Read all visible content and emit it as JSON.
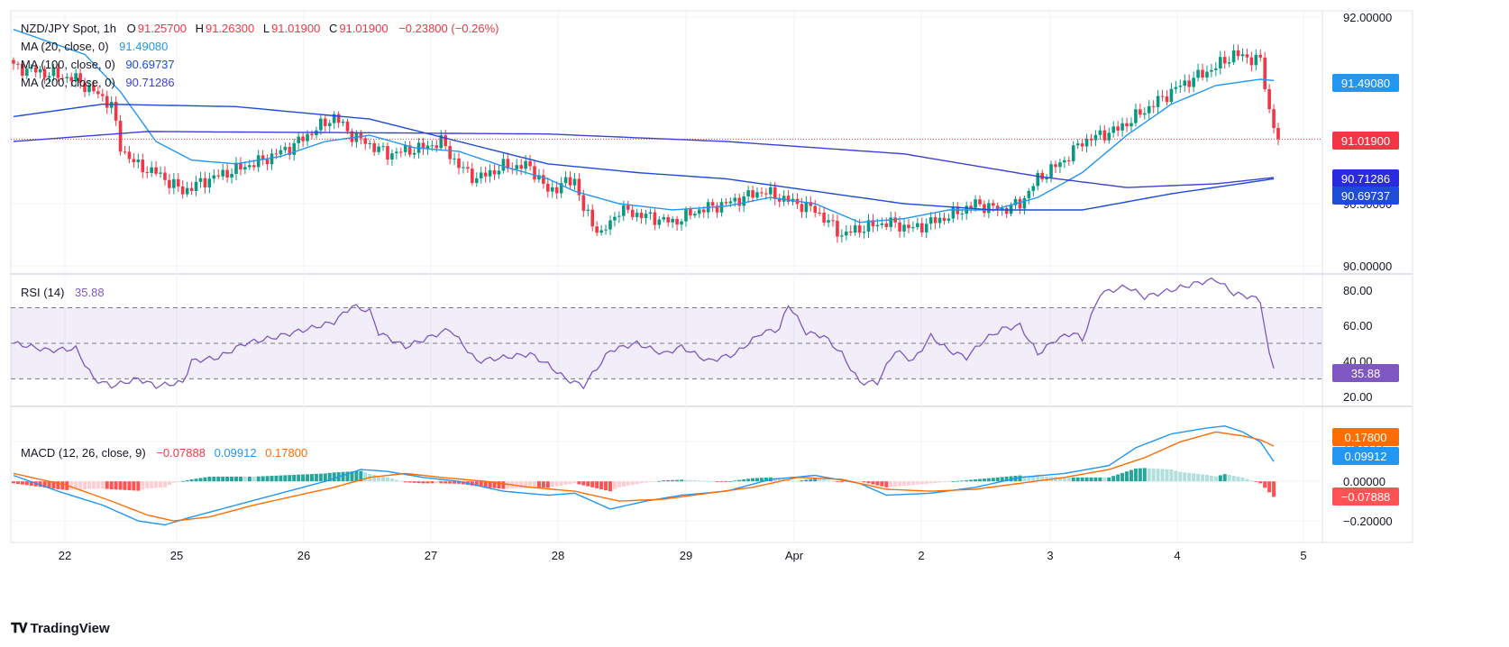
{
  "header": {
    "symbol": "NZD/JPY Spot, 1h",
    "o_label": "O",
    "o_value": "91.25700",
    "h_label": "H",
    "h_value": "91.26300",
    "l_label": "L",
    "l_value": "91.01900",
    "c_label": "C",
    "c_value": "91.01900",
    "change": "−0.23800 (−0.26%)"
  },
  "indicators": {
    "ma20": {
      "label": "MA (20, close, 0)",
      "value": "91.49080",
      "color": "#2196f3"
    },
    "ma100": {
      "label": "MA (100, close, 0)",
      "value": "90.69737",
      "color": "#1e4bd8"
    },
    "ma200": {
      "label": "MA (200, close, 0)",
      "value": "90.71286",
      "color": "#3f3fd9"
    },
    "rsi": {
      "label": "RSI (14)",
      "value": "35.88",
      "color": "#7e57c2"
    },
    "macd": {
      "label": "MACD (12, 26, close, 9)",
      "hist_value": "−0.07888",
      "macd_value": "0.09912",
      "signal_value": "0.17800",
      "hist_color": "#f23645",
      "macd_color": "#2196f3",
      "signal_color": "#ff6d00"
    }
  },
  "badges": {
    "price_last": "91.01900",
    "ma20": "91.49080",
    "ma200": "90.71286",
    "ma100": "90.69737",
    "rsi": "35.88",
    "signal": "0.17800",
    "macd": "0.09912",
    "hist": "−0.07888"
  },
  "brand": {
    "name": "TradingView"
  },
  "chart_data": [
    {
      "type": "candlestick",
      "title": "NZD/JPY Spot, 1h",
      "x_tick_labels": [
        "22",
        "25",
        "26",
        "27",
        "28",
        "29",
        "Apr",
        "2",
        "3",
        "4",
        "5"
      ],
      "y_tick_labels": [
        "92.00000",
        "90.50000",
        "90.00000"
      ],
      "ylim": [
        89.95,
        92.05
      ],
      "last_close": 91.019,
      "close_path": [
        [
          0,
          91.6
        ],
        [
          14,
          91.5
        ],
        [
          22,
          91.3
        ],
        [
          24,
          90.95
        ],
        [
          28,
          90.8
        ],
        [
          32,
          90.75
        ],
        [
          38,
          90.6
        ],
        [
          44,
          90.7
        ],
        [
          48,
          90.75
        ],
        [
          56,
          90.85
        ],
        [
          62,
          90.95
        ],
        [
          68,
          91.1
        ],
        [
          72,
          91.2
        ],
        [
          76,
          91.05
        ],
        [
          84,
          90.9
        ],
        [
          92,
          90.95
        ],
        [
          96,
          91.0
        ],
        [
          100,
          90.8
        ],
        [
          104,
          90.7
        ],
        [
          110,
          90.8
        ],
        [
          116,
          90.8
        ],
        [
          120,
          90.6
        ],
        [
          126,
          90.7
        ],
        [
          128,
          90.45
        ],
        [
          132,
          90.25
        ],
        [
          136,
          90.45
        ],
        [
          142,
          90.4
        ],
        [
          148,
          90.35
        ],
        [
          154,
          90.45
        ],
        [
          160,
          90.5
        ],
        [
          168,
          90.6
        ],
        [
          172,
          90.55
        ],
        [
          176,
          90.5
        ],
        [
          180,
          90.45
        ],
        [
          186,
          90.25
        ],
        [
          190,
          90.3
        ],
        [
          196,
          90.35
        ],
        [
          202,
          90.3
        ],
        [
          210,
          90.4
        ],
        [
          216,
          90.5
        ],
        [
          222,
          90.45
        ],
        [
          226,
          90.5
        ],
        [
          230,
          90.7
        ],
        [
          236,
          90.85
        ],
        [
          240,
          91.0
        ],
        [
          248,
          91.1
        ],
        [
          256,
          91.3
        ],
        [
          262,
          91.45
        ],
        [
          270,
          91.6
        ],
        [
          274,
          91.7
        ],
        [
          280,
          91.65
        ],
        [
          282,
          91.25
        ],
        [
          284,
          91.02
        ]
      ],
      "n_bars": 285,
      "series": [
        {
          "name": "MA (20, close, 0)",
          "last": 91.4908,
          "path": [
            [
              0,
              91.9
            ],
            [
              16,
              91.7
            ],
            [
              24,
              91.4
            ],
            [
              32,
              91.0
            ],
            [
              40,
              90.85
            ],
            [
              50,
              90.82
            ],
            [
              60,
              90.88
            ],
            [
              70,
              91.0
            ],
            [
              80,
              91.05
            ],
            [
              90,
              90.95
            ],
            [
              100,
              90.92
            ],
            [
              110,
              90.8
            ],
            [
              120,
              90.7
            ],
            [
              126,
              90.6
            ],
            [
              136,
              90.5
            ],
            [
              148,
              90.45
            ],
            [
              160,
              90.48
            ],
            [
              170,
              90.55
            ],
            [
              180,
              90.5
            ],
            [
              190,
              90.35
            ],
            [
              200,
              90.38
            ],
            [
              210,
              90.45
            ],
            [
              220,
              90.45
            ],
            [
              230,
              90.55
            ],
            [
              240,
              90.75
            ],
            [
              250,
              91.05
            ],
            [
              260,
              91.3
            ],
            [
              270,
              91.45
            ],
            [
              280,
              91.5
            ],
            [
              283,
              91.49
            ]
          ]
        },
        {
          "name": "MA (100, close, 0)",
          "last": 90.69737,
          "path": [
            [
              0,
              91.2
            ],
            [
              20,
              91.3
            ],
            [
              50,
              91.28
            ],
            [
              80,
              91.18
            ],
            [
              100,
              91.0
            ],
            [
              120,
              90.82
            ],
            [
              140,
              90.75
            ],
            [
              160,
              90.7
            ],
            [
              180,
              90.6
            ],
            [
              200,
              90.5
            ],
            [
              220,
              90.45
            ],
            [
              240,
              90.45
            ],
            [
              260,
              90.58
            ],
            [
              283,
              90.7
            ]
          ]
        },
        {
          "name": "MA (200, close, 0)",
          "last": 90.71286,
          "path": [
            [
              0,
              91.0
            ],
            [
              30,
              91.08
            ],
            [
              80,
              91.07
            ],
            [
              120,
              91.06
            ],
            [
              160,
              91.0
            ],
            [
              200,
              90.9
            ],
            [
              230,
              90.72
            ],
            [
              250,
              90.63
            ],
            [
              270,
              90.66
            ],
            [
              283,
              90.71
            ]
          ]
        }
      ]
    },
    {
      "type": "line",
      "title": "RSI (14)",
      "y_tick_labels": [
        "80.00",
        "60.00",
        "40.00",
        "20.00"
      ],
      "ylim": [
        15,
        88
      ],
      "levels": [
        70,
        50,
        30
      ],
      "series": [
        {
          "name": "RSI (14)",
          "last": 35.88,
          "path": [
            [
              0,
              50
            ],
            [
              8,
              46
            ],
            [
              14,
              47
            ],
            [
              18,
              30
            ],
            [
              22,
              26
            ],
            [
              28,
              30
            ],
            [
              32,
              26
            ],
            [
              38,
              28
            ],
            [
              40,
              40
            ],
            [
              46,
              42
            ],
            [
              52,
              50
            ],
            [
              58,
              53
            ],
            [
              66,
              58
            ],
            [
              72,
              62
            ],
            [
              76,
              71
            ],
            [
              80,
              68
            ],
            [
              82,
              56
            ],
            [
              88,
              48
            ],
            [
              92,
              52
            ],
            [
              98,
              58
            ],
            [
              104,
              40
            ],
            [
              110,
              42
            ],
            [
              116,
              44
            ],
            [
              120,
              38
            ],
            [
              124,
              30
            ],
            [
              128,
              26
            ],
            [
              134,
              46
            ],
            [
              140,
              50
            ],
            [
              146,
              44
            ],
            [
              150,
              48
            ],
            [
              156,
              40
            ],
            [
              162,
              44
            ],
            [
              168,
              56
            ],
            [
              172,
              58
            ],
            [
              174,
              72
            ],
            [
              178,
              56
            ],
            [
              182,
              54
            ],
            [
              186,
              44
            ],
            [
              190,
              28
            ],
            [
              194,
              28
            ],
            [
              198,
              46
            ],
            [
              202,
              40
            ],
            [
              206,
              54
            ],
            [
              210,
              46
            ],
            [
              214,
              42
            ],
            [
              218,
              52
            ],
            [
              222,
              58
            ],
            [
              226,
              60
            ],
            [
              230,
              44
            ],
            [
              234,
              52
            ],
            [
              238,
              56
            ],
            [
              240,
              52
            ],
            [
              244,
              78
            ],
            [
              250,
              82
            ],
            [
              254,
              76
            ],
            [
              260,
              80
            ],
            [
              266,
              84
            ],
            [
              270,
              86
            ],
            [
              274,
              78
            ],
            [
              278,
              76
            ],
            [
              280,
              74
            ],
            [
              282,
              43
            ],
            [
              283,
              35.88
            ]
          ]
        }
      ]
    },
    {
      "type": "bar+line",
      "title": "MACD (12, 26, close, 9)",
      "y_tick_labels": [
        "0.20000",
        "0.00000",
        "−0.20000"
      ],
      "ylim": [
        -0.3,
        0.37
      ],
      "series": [
        {
          "name": "MACD",
          "last": 0.09912,
          "path": [
            [
              0,
              0.03
            ],
            [
              10,
              -0.05
            ],
            [
              20,
              -0.12
            ],
            [
              28,
              -0.2
            ],
            [
              34,
              -0.22
            ],
            [
              40,
              -0.18
            ],
            [
              50,
              -0.12
            ],
            [
              60,
              -0.06
            ],
            [
              70,
              0.0
            ],
            [
              78,
              0.06
            ],
            [
              84,
              0.05
            ],
            [
              92,
              0.02
            ],
            [
              100,
              0.0
            ],
            [
              110,
              -0.05
            ],
            [
              120,
              -0.07
            ],
            [
              126,
              -0.06
            ],
            [
              134,
              -0.14
            ],
            [
              142,
              -0.1
            ],
            [
              150,
              -0.07
            ],
            [
              160,
              -0.05
            ],
            [
              170,
              0.01
            ],
            [
              180,
              0.03
            ],
            [
              190,
              -0.01
            ],
            [
              196,
              -0.07
            ],
            [
              206,
              -0.06
            ],
            [
              216,
              -0.03
            ],
            [
              226,
              0.02
            ],
            [
              236,
              0.04
            ],
            [
              246,
              0.08
            ],
            [
              252,
              0.17
            ],
            [
              260,
              0.24
            ],
            [
              268,
              0.27
            ],
            [
              272,
              0.28
            ],
            [
              276,
              0.25
            ],
            [
              280,
              0.2
            ],
            [
              283,
              0.1
            ]
          ]
        },
        {
          "name": "Signal",
          "last": 0.178,
          "path": [
            [
              0,
              0.04
            ],
            [
              12,
              -0.02
            ],
            [
              22,
              -0.1
            ],
            [
              30,
              -0.17
            ],
            [
              36,
              -0.2
            ],
            [
              44,
              -0.18
            ],
            [
              54,
              -0.12
            ],
            [
              64,
              -0.07
            ],
            [
              72,
              -0.03
            ],
            [
              80,
              0.02
            ],
            [
              88,
              0.04
            ],
            [
              96,
              0.02
            ],
            [
              106,
              0.0
            ],
            [
              116,
              -0.03
            ],
            [
              126,
              -0.05
            ],
            [
              136,
              -0.1
            ],
            [
              146,
              -0.09
            ],
            [
              156,
              -0.06
            ],
            [
              166,
              -0.03
            ],
            [
              176,
              0.02
            ],
            [
              186,
              0.01
            ],
            [
              196,
              -0.04
            ],
            [
              206,
              -0.05
            ],
            [
              216,
              -0.04
            ],
            [
              226,
              -0.01
            ],
            [
              236,
              0.02
            ],
            [
              246,
              0.06
            ],
            [
              254,
              0.12
            ],
            [
              262,
              0.2
            ],
            [
              270,
              0.25
            ],
            [
              276,
              0.23
            ],
            [
              280,
              0.21
            ],
            [
              283,
              0.178
            ]
          ]
        }
      ],
      "histogram": {
        "name": "Histogram",
        "last": -0.07888
      }
    }
  ]
}
